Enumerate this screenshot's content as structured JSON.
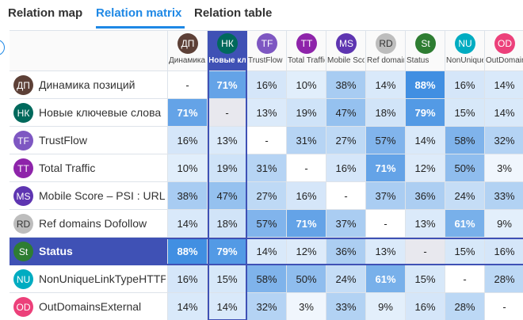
{
  "tabs": [
    "Relation map",
    "Relation matrix",
    "Relation table"
  ],
  "active_tab": 1,
  "matrix": {
    "selected_row": 6,
    "selected_column": 1,
    "rows": [
      {
        "abbr": "ДП",
        "label": "Динамика позиций",
        "color": "#5d4037",
        "cells": [
          "-",
          "71%",
          "16%",
          "10%",
          "38%",
          "14%",
          "88%",
          "16%",
          "14%"
        ]
      },
      {
        "abbr": "НК",
        "label": "Новые ключевые слова",
        "color": "#00695c",
        "cells": [
          "71%",
          "-",
          "13%",
          "19%",
          "47%",
          "18%",
          "79%",
          "15%",
          "14%"
        ]
      },
      {
        "abbr": "TF",
        "label": "TrustFlow",
        "color": "#7e57c2",
        "cells": [
          "16%",
          "13%",
          "-",
          "31%",
          "27%",
          "57%",
          "14%",
          "58%",
          "32%"
        ]
      },
      {
        "abbr": "TT",
        "label": "Total Traffic",
        "color": "#8e24aa",
        "cells": [
          "10%",
          "19%",
          "31%",
          "-",
          "16%",
          "71%",
          "12%",
          "50%",
          "3%"
        ]
      },
      {
        "abbr": "MS",
        "label": "Mobile Score – PSI : URL",
        "color": "#5e35b1",
        "cells": [
          "38%",
          "47%",
          "27%",
          "16%",
          "-",
          "37%",
          "36%",
          "24%",
          "33%"
        ]
      },
      {
        "abbr": "RD",
        "label": "Ref domains Dofollow",
        "color": "#bdbdbd",
        "cells": [
          "14%",
          "18%",
          "57%",
          "71%",
          "37%",
          "-",
          "13%",
          "61%",
          "9%"
        ]
      },
      {
        "abbr": "St",
        "label": "Status",
        "color": "#2e7d32",
        "cells": [
          "88%",
          "79%",
          "14%",
          "12%",
          "36%",
          "13%",
          "-",
          "15%",
          "16%"
        ]
      },
      {
        "abbr": "NU",
        "label": "NonUniqueLinkTypeHTTPS",
        "color": "#00acc1",
        "cells": [
          "16%",
          "15%",
          "58%",
          "50%",
          "24%",
          "61%",
          "15%",
          "-",
          "28%"
        ]
      },
      {
        "abbr": "OD",
        "label": "OutDomainsExternal",
        "color": "#ec407a",
        "cells": [
          "14%",
          "14%",
          "32%",
          "3%",
          "33%",
          "9%",
          "16%",
          "28%",
          "-"
        ]
      }
    ]
  }
}
